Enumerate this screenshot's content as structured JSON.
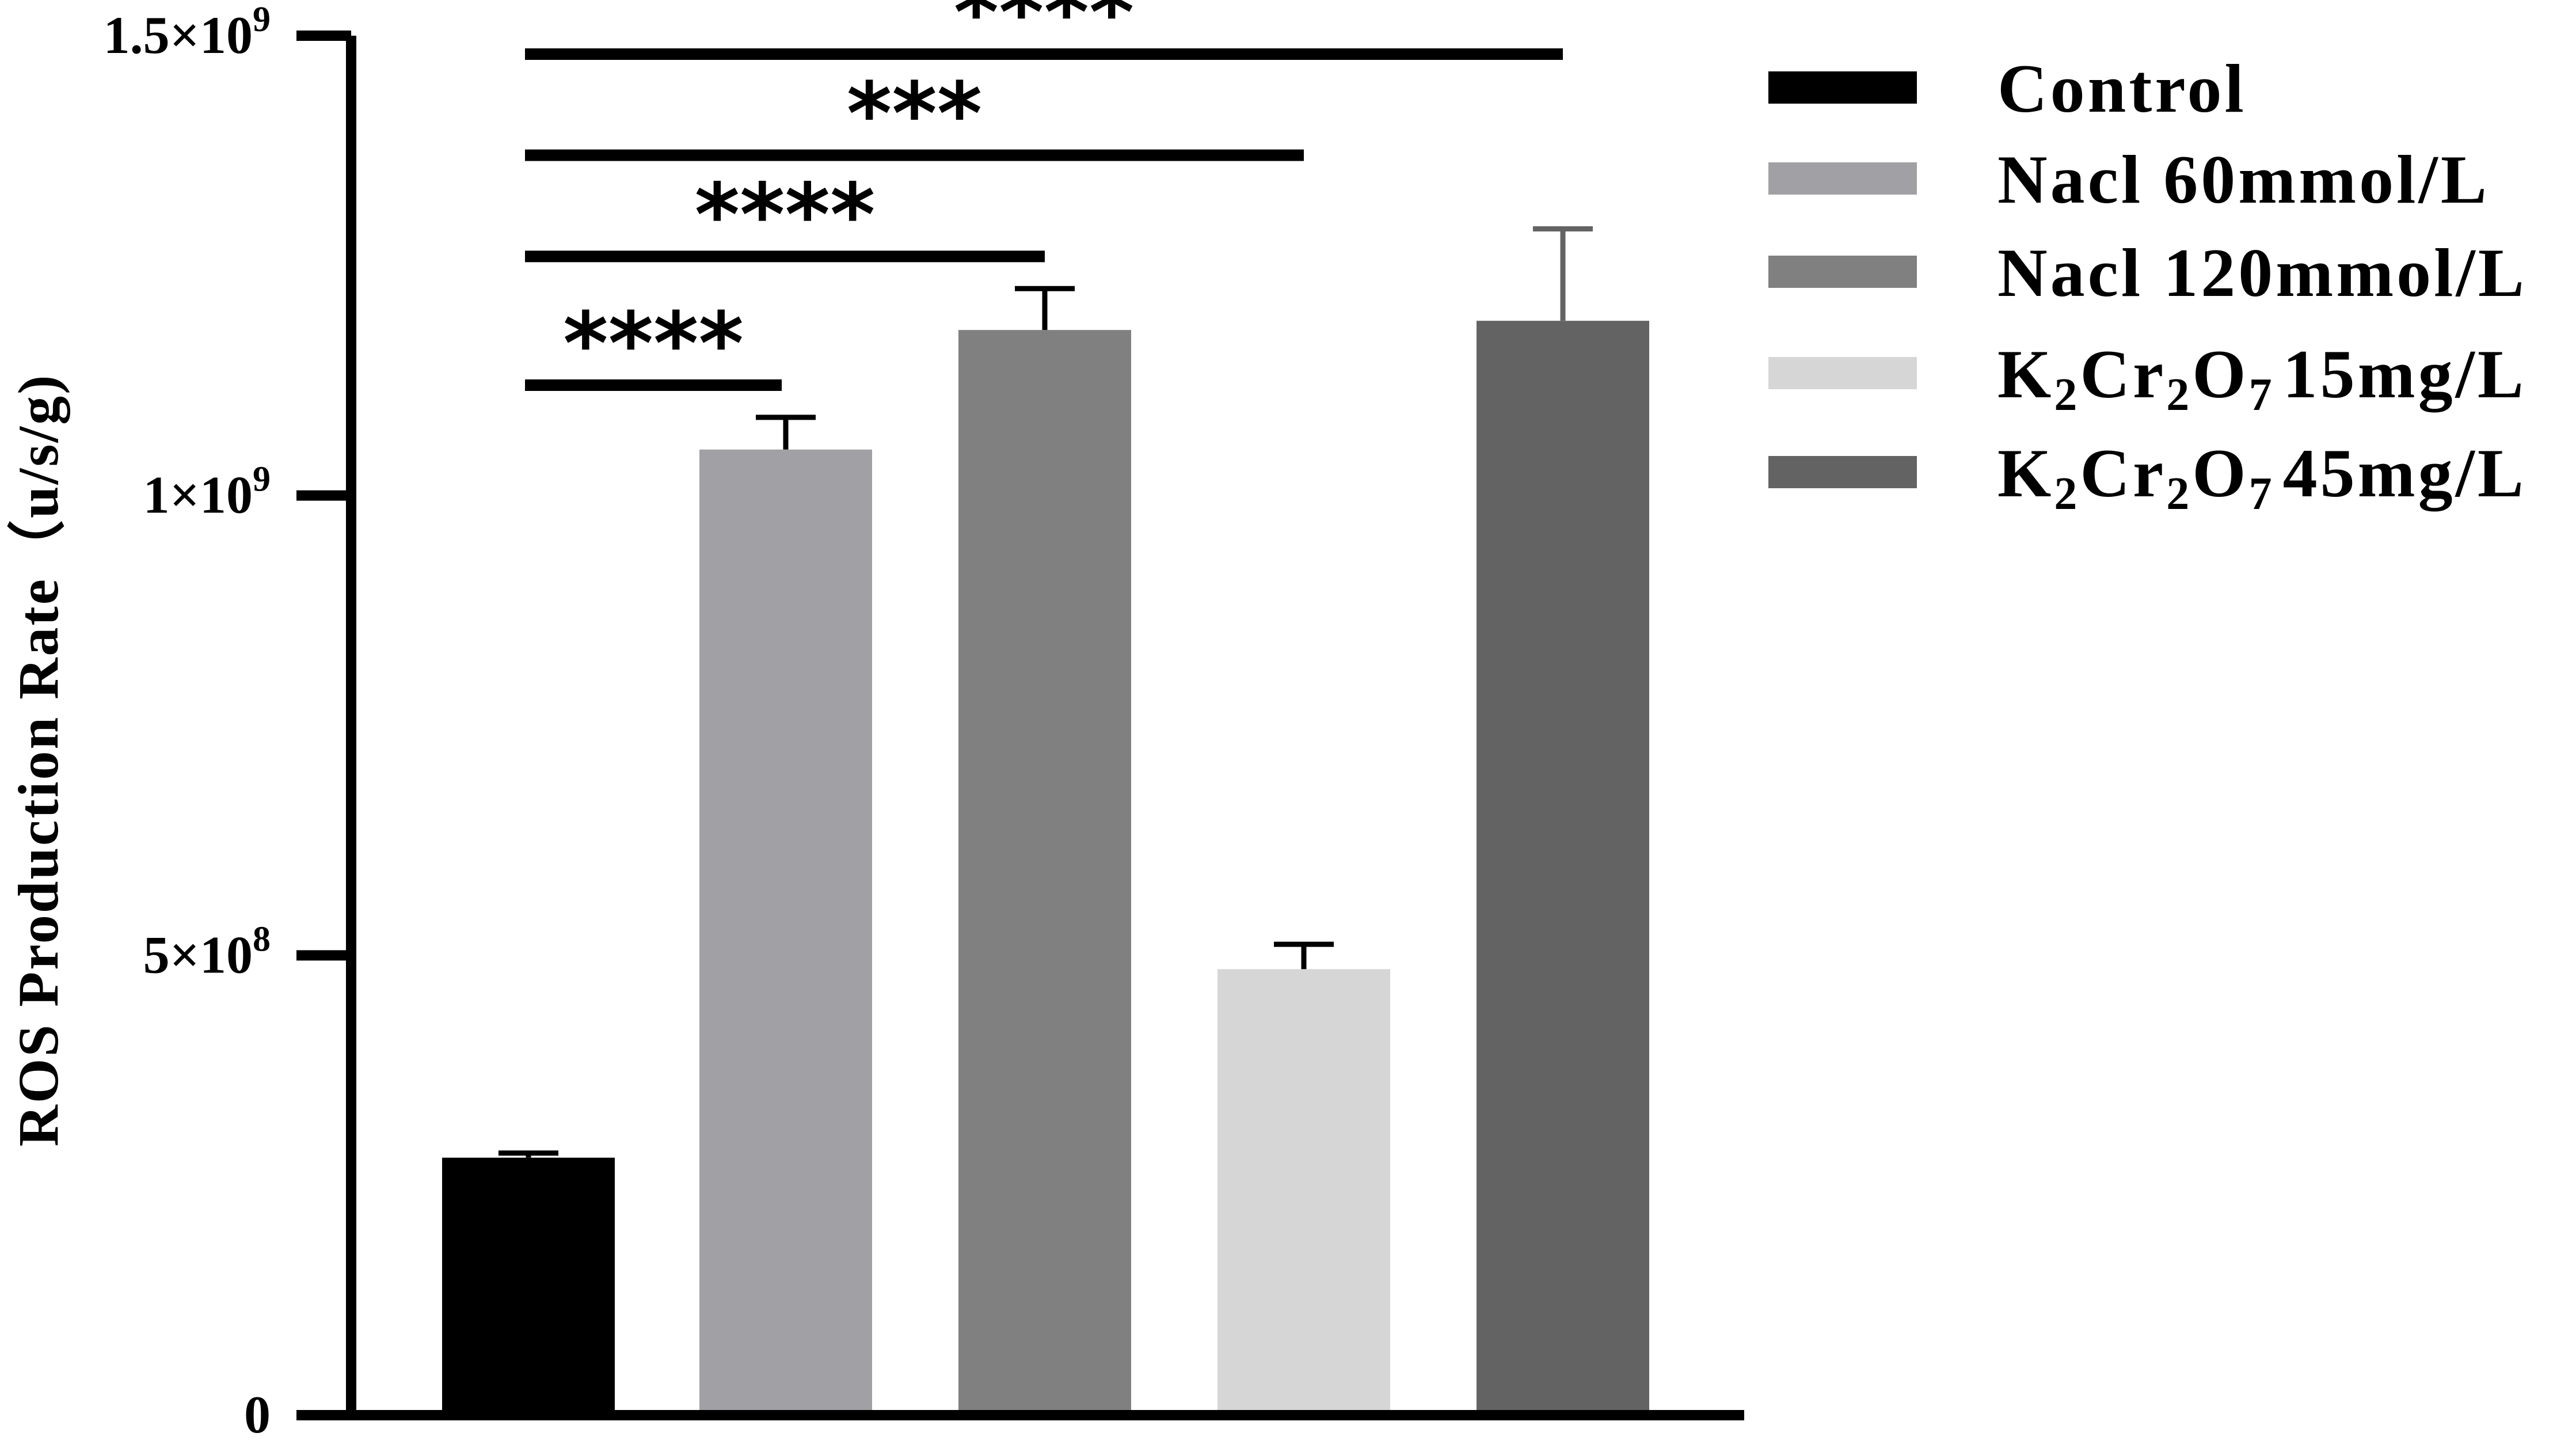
{
  "chart_data": {
    "type": "bar",
    "ylabel": "ROS Production Rate（u/s/g)",
    "ylim": [
      0,
      1500000000
    ],
    "yticks": [
      {
        "value": 0,
        "mantissa": "0",
        "exponent": ""
      },
      {
        "value": 500000000,
        "mantissa": "5×10",
        "exponent": "8"
      },
      {
        "value": 1000000000,
        "mantissa": "1×10",
        "exponent": "9"
      },
      {
        "value": 1500000000,
        "mantissa": "1.5×10",
        "exponent": "9"
      }
    ],
    "grid": false,
    "legend_position": "top-right",
    "series": [
      {
        "name": "Control",
        "value": 280000000,
        "error": 5000000,
        "color": "#000000",
        "label_parts": {
          "a": "Control"
        }
      },
      {
        "name": "Nacl 60mmol/L",
        "value": 1050000000,
        "error": 35000000,
        "color": "#a1a0a5",
        "label_parts": {
          "a": "Nacl 60mmol/L"
        }
      },
      {
        "name": "Nacl 120mmol/L",
        "value": 1180000000,
        "error": 45000000,
        "color": "#808080",
        "label_parts": {
          "a": "Nacl 120mmol/L"
        }
      },
      {
        "name": "K2Cr2O7 15mg/L",
        "value": 485000000,
        "error": 27000000,
        "color": "#d6d6d6",
        "label_parts": {
          "a": "K",
          "s1": "2",
          "b": "Cr",
          "s2": "2",
          "c": "O",
          "s3": "7",
          "d": "15mg/L"
        }
      },
      {
        "name": "K2Cr2O7 45mg/L",
        "value": 1190000000,
        "error": 100000000,
        "color": "#636363",
        "label_parts": {
          "a": "K",
          "s1": "2",
          "b": "Cr",
          "s2": "2",
          "c": "O",
          "s3": "7",
          "d": "45mg/L"
        }
      }
    ],
    "significance": [
      {
        "from": 0,
        "to": 1,
        "label": "****",
        "y": 1120000000
      },
      {
        "from": 0,
        "to": 2,
        "label": "****",
        "y": 1260000000
      },
      {
        "from": 0,
        "to": 3,
        "label": "***",
        "y": 1370000000
      },
      {
        "from": 0,
        "to": 4,
        "label": "****",
        "y": 1480000000
      }
    ]
  }
}
